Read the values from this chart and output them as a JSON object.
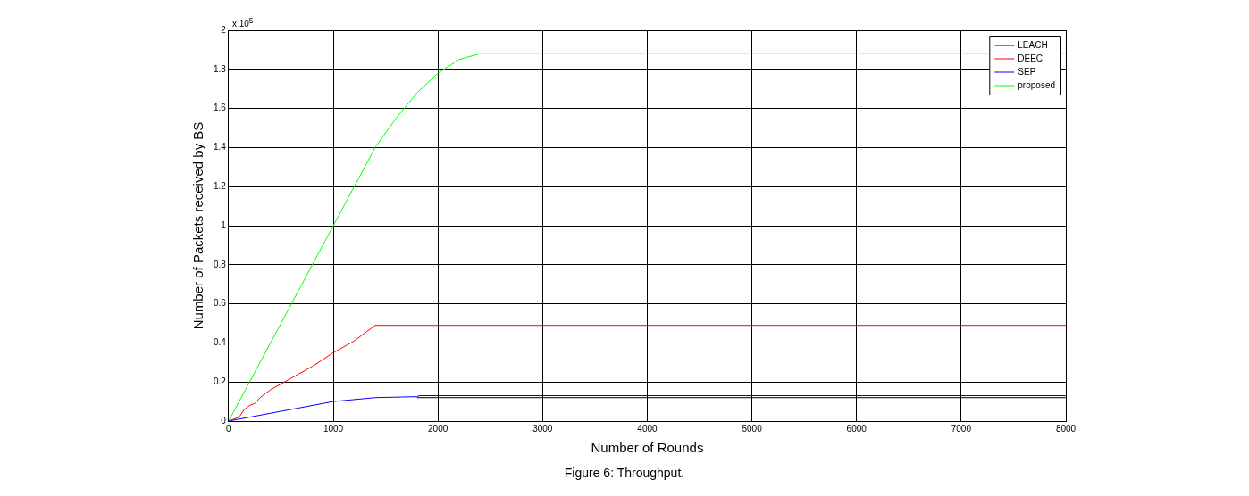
{
  "chart_data": {
    "type": "line",
    "xlabel": "Number of Rounds",
    "ylabel": "Number of Packets received by BS",
    "annotations": [
      "x 10$^{5}$",
      "Figure 6: Throughput."
    ],
    "xlim": [
      0,
      8000
    ],
    "xticks": [
      0,
      1000,
      2000,
      3000,
      4000,
      5000,
      6000,
      7000,
      8000
    ],
    "ylim": [
      0,
      2
    ],
    "yticks": [
      0,
      0.2,
      0.4,
      0.6,
      0.8,
      1,
      1.2,
      1.4,
      1.6,
      1.8,
      2
    ],
    "grid": true,
    "legend": "top right",
    "marker": "none",
    "line_style": "solid",
    "series": [
      {
        "name": "LEACH",
        "color": "#000000",
        "x": [
          1800,
          8000
        ],
        "values": [
          0.12,
          0.12
        ]
      },
      {
        "name": "DEEC",
        "color": "#ff0000",
        "x": [
          0,
          100,
          150,
          200,
          250,
          300,
          400,
          600,
          800,
          1000,
          1200,
          1300,
          1400,
          8000
        ],
        "values": [
          0,
          0.02,
          0.06,
          0.08,
          0.09,
          0.12,
          0.16,
          0.22,
          0.28,
          0.35,
          0.41,
          0.45,
          0.49,
          0.49
        ]
      },
      {
        "name": "SEP",
        "color": "#0000ff",
        "x": [
          0,
          500,
          1000,
          1400,
          1800,
          1820,
          8000
        ],
        "values": [
          0,
          0.05,
          0.1,
          0.12,
          0.125,
          0.13,
          0.13
        ]
      },
      {
        "name": "proposed",
        "color": "#00ff00",
        "x": [
          0,
          500,
          1000,
          1200,
          1400,
          1600,
          1800,
          2000,
          2200,
          2400,
          2500,
          8000
        ],
        "values": [
          0,
          0.5,
          1.0,
          1.2,
          1.4,
          1.55,
          1.68,
          1.78,
          1.85,
          1.88,
          1.88,
          1.88
        ]
      }
    ]
  }
}
